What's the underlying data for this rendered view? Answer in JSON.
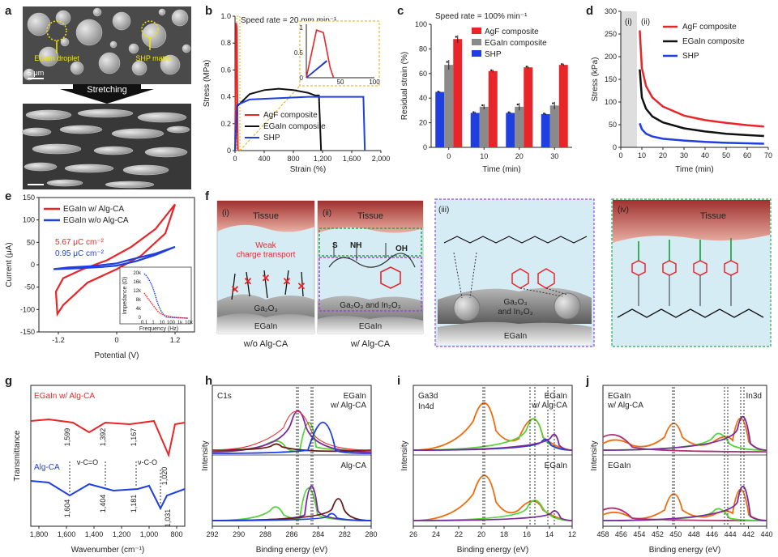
{
  "panel_letters": {
    "a": "a",
    "b": "b",
    "c": "c",
    "d": "d",
    "e": "e",
    "f": "f",
    "g": "g",
    "h": "h",
    "i": "i",
    "j": "j"
  },
  "panel_a": {
    "egain_droplet": "EGaIn droplet",
    "shp_matrix": "SHP matrix",
    "scale": "5 μm",
    "arrow_label": "Stretching"
  },
  "panel_b": {
    "annotation": "Speed rate = 20 mm min⁻¹",
    "ylabel": "Stress (MPa)",
    "xlabel": "Strain (%)",
    "yticks": [
      "0",
      "0.2",
      "0.4",
      "0.6",
      "0.8",
      "1.0"
    ],
    "xticks": [
      "0",
      "400",
      "800",
      "1,200",
      "1,600",
      "2,000"
    ],
    "inset_yticks": [
      "0",
      "0.5",
      "1"
    ],
    "inset_xticks": [
      "50",
      "100"
    ],
    "legend": [
      "AgF composite",
      "EGaIn composite",
      "SHP"
    ]
  },
  "panel_c": {
    "annotation": "Speed rate = 100% min⁻¹",
    "ylabel": "Residual strain (%)",
    "xlabel": "Time (min)",
    "yticks": [
      "0",
      "20",
      "40",
      "60",
      "80",
      "100"
    ],
    "xticks": [
      "0",
      "10",
      "20",
      "30"
    ],
    "legend": [
      "AgF composite",
      "EGaIn composite",
      "SHP"
    ]
  },
  "panel_d": {
    "ylabel": "Stress (kPa)",
    "xlabel": "Time (min)",
    "yticks": [
      "0",
      "50",
      "100",
      "150",
      "200",
      "250",
      "300"
    ],
    "xticks": [
      "0",
      "10",
      "20",
      "30",
      "40",
      "50",
      "60",
      "70"
    ],
    "region_labels": [
      "(i)",
      "(ii)"
    ],
    "legend": [
      "AgF composite",
      "EGaIn composite",
      "SHP"
    ]
  },
  "panel_e": {
    "ylabel": "Current (μA)",
    "xlabel": "Potential (V)",
    "yticks": [
      "-150",
      "-100",
      "-50",
      "0",
      "50",
      "100",
      "150"
    ],
    "xticks": [
      "-1.2",
      "0",
      "1.2"
    ],
    "legend": [
      "EGaIn w/ Alg-CA",
      "EGaIn w/o Alg-CA"
    ],
    "charge_red": "5.67 μC cm⁻²",
    "charge_blue": "0.95 μC cm⁻²",
    "inset_ylabel": "Impedance (Ω)",
    "inset_xlabel": "Frequency (Hz)",
    "inset_yticks": [
      "0",
      "4k",
      "8k",
      "12k",
      "16k",
      "20k"
    ],
    "inset_xticks": [
      "0.1",
      "1",
      "10",
      "100",
      "1k",
      "10k"
    ]
  },
  "panel_f": {
    "i_label": "(i)",
    "ii_label": "(ii)",
    "iii_label": "(iii)",
    "iv_label": "(iv)",
    "tissue": "Tissue",
    "weak": "Weak\ncharge transport",
    "ga2o3": "Ga₂O₃",
    "ga2o3_in2o3": "Ga₂O₃ and In₂O₃",
    "ga2o3_and": "Ga₂O₃",
    "and_in2o3": "and In₂O₃",
    "egain": "EGaIn",
    "wo": "w/o Alg-CA",
    "w": "w/ Alg-CA",
    "s": "S",
    "nh": "NH",
    "oh": "OH"
  },
  "panel_g": {
    "legend_red": "EGaIn w/ Alg-CA",
    "legend_blue": "Alg-CA",
    "ylabel": "Transmittance",
    "xlabel": "Wavenumber (cm⁻¹)",
    "xticks": [
      "1,800",
      "1,600",
      "1,400",
      "1,200",
      "1,000",
      "800"
    ],
    "peaks_top": [
      "1,599",
      "1,392",
      "1,167",
      "1,020"
    ],
    "peaks_bottom": [
      "1,604",
      "1,404",
      "1,181",
      "1,031"
    ],
    "bands": [
      "ν-C=O",
      "ν-C-O"
    ]
  },
  "panel_h": {
    "tag": "C1s",
    "top": "EGaIn\nw/ Alg-CA",
    "bottom": "Alg-CA",
    "ylabel": "Intensity",
    "xlabel": "Binding energy (eV)",
    "xticks": [
      "292",
      "290",
      "288",
      "286",
      "284",
      "282",
      "280"
    ]
  },
  "panel_i": {
    "tag1": "Ga3d",
    "tag2": "In4d",
    "top": "EGaIn\nw/ Alg-CA",
    "bottom": "EGaIn",
    "ylabel": "Intensity",
    "xlabel": "Binding energy (eV)",
    "xticks": [
      "26",
      "24",
      "22",
      "20",
      "18",
      "16",
      "14",
      "12"
    ]
  },
  "panel_j": {
    "tag": "In3d",
    "top": "EGaIn\nw/ Alg-CA",
    "bottom": "EGaIn",
    "ylabel": "Intensity",
    "xlabel": "Binding energy (eV)",
    "xticks": [
      "458",
      "456",
      "454",
      "452",
      "450",
      "448",
      "446",
      "444",
      "442",
      "440"
    ]
  },
  "colors": {
    "red": "#e8262a",
    "black": "#111111",
    "blue": "#1f3fe0",
    "grey": "#8a8a8a",
    "orange": "#ef6c0e",
    "green": "#57d23c",
    "purple": "#7b2a9e",
    "brown": "#6b1a1a"
  },
  "chart_data": [
    {
      "type": "line",
      "panel": "b",
      "xlabel": "Strain (%)",
      "ylabel": "Stress (MPa)",
      "xlim": [
        0,
        2000
      ],
      "ylim": [
        0,
        1.0
      ],
      "series": [
        {
          "name": "AgF composite",
          "x": [
            0,
            15,
            25,
            35,
            40
          ],
          "y": [
            0,
            0.95,
            0.9,
            0.2,
            0
          ]
        },
        {
          "name": "EGaIn composite",
          "x": [
            0,
            30,
            200,
            400,
            600,
            800,
            1000,
            1100,
            1150,
            1180
          ],
          "y": [
            0,
            0.33,
            0.42,
            0.45,
            0.46,
            0.45,
            0.43,
            0.41,
            0.41,
            0
          ]
        },
        {
          "name": "SHP",
          "x": [
            0,
            30,
            200,
            600,
            1000,
            1400,
            1700,
            1760,
            1780
          ],
          "y": [
            0,
            0.34,
            0.38,
            0.39,
            0.4,
            0.4,
            0.4,
            0.4,
            0
          ]
        }
      ]
    },
    {
      "type": "bar",
      "panel": "c",
      "categories": [
        "0",
        "10",
        "20",
        "30"
      ],
      "xlabel": "Time (min)",
      "ylabel": "Residual strain (%)",
      "ylim": [
        0,
        100
      ],
      "series": [
        {
          "name": "SHP",
          "values": [
            45,
            28,
            28,
            27
          ],
          "errors": [
            0.5,
            1,
            0.8,
            0.8
          ]
        },
        {
          "name": "EGaIn composite",
          "values": [
            67,
            33,
            33,
            34
          ],
          "errors": [
            4,
            2,
            3,
            3
          ]
        },
        {
          "name": "AgF composite",
          "values": [
            88,
            62,
            65,
            67
          ],
          "errors": [
            3,
            1,
            1,
            1
          ]
        }
      ]
    },
    {
      "type": "line",
      "panel": "d",
      "xlabel": "Time (min)",
      "ylabel": "Stress (kPa)",
      "xlim": [
        0,
        70
      ],
      "ylim": [
        0,
        300
      ],
      "series": [
        {
          "name": "AgF composite",
          "x": [
            9,
            10,
            12,
            15,
            20,
            30,
            40,
            50,
            60,
            68
          ],
          "y": [
            258,
            175,
            135,
            110,
            90,
            70,
            60,
            54,
            49,
            46
          ]
        },
        {
          "name": "EGaIn composite",
          "x": [
            9,
            10,
            12,
            15,
            20,
            30,
            40,
            50,
            60,
            68
          ],
          "y": [
            172,
            110,
            85,
            68,
            55,
            42,
            35,
            30,
            27,
            25
          ]
        },
        {
          "name": "SHP",
          "x": [
            9,
            10,
            12,
            15,
            20,
            30,
            40,
            50,
            60,
            68
          ],
          "y": [
            53,
            40,
            30,
            24,
            19,
            15,
            12,
            10,
            9,
            8
          ]
        }
      ]
    },
    {
      "type": "line",
      "panel": "e",
      "xlabel": "Potential (V)",
      "ylabel": "Current (μA)",
      "xlim": [
        -1.6,
        1.6
      ],
      "ylim": [
        -150,
        150
      ],
      "series": [
        {
          "name": "EGaIn w/ Alg-CA",
          "x": [
            1.2,
            0.8,
            0.3,
            -0.2,
            -0.7,
            -1.1,
            -1.25,
            -1.22,
            -1.1,
            -0.6,
            0,
            0.5,
            1.0,
            1.2
          ],
          "y": [
            135,
            80,
            40,
            10,
            -10,
            -30,
            -60,
            -110,
            -90,
            -40,
            -10,
            20,
            70,
            135
          ]
        },
        {
          "name": "EGaIn w/o Alg-CA",
          "x": [
            -1.3,
            -0.8,
            -0.3,
            0,
            0.4,
            0.8,
            1.2,
            0.8,
            0.3,
            0,
            -0.5,
            -1.0,
            -1.3
          ],
          "y": [
            -10,
            -8,
            -5,
            -2,
            8,
            22,
            40,
            25,
            12,
            3,
            -3,
            -6,
            -10
          ]
        }
      ]
    }
  ]
}
